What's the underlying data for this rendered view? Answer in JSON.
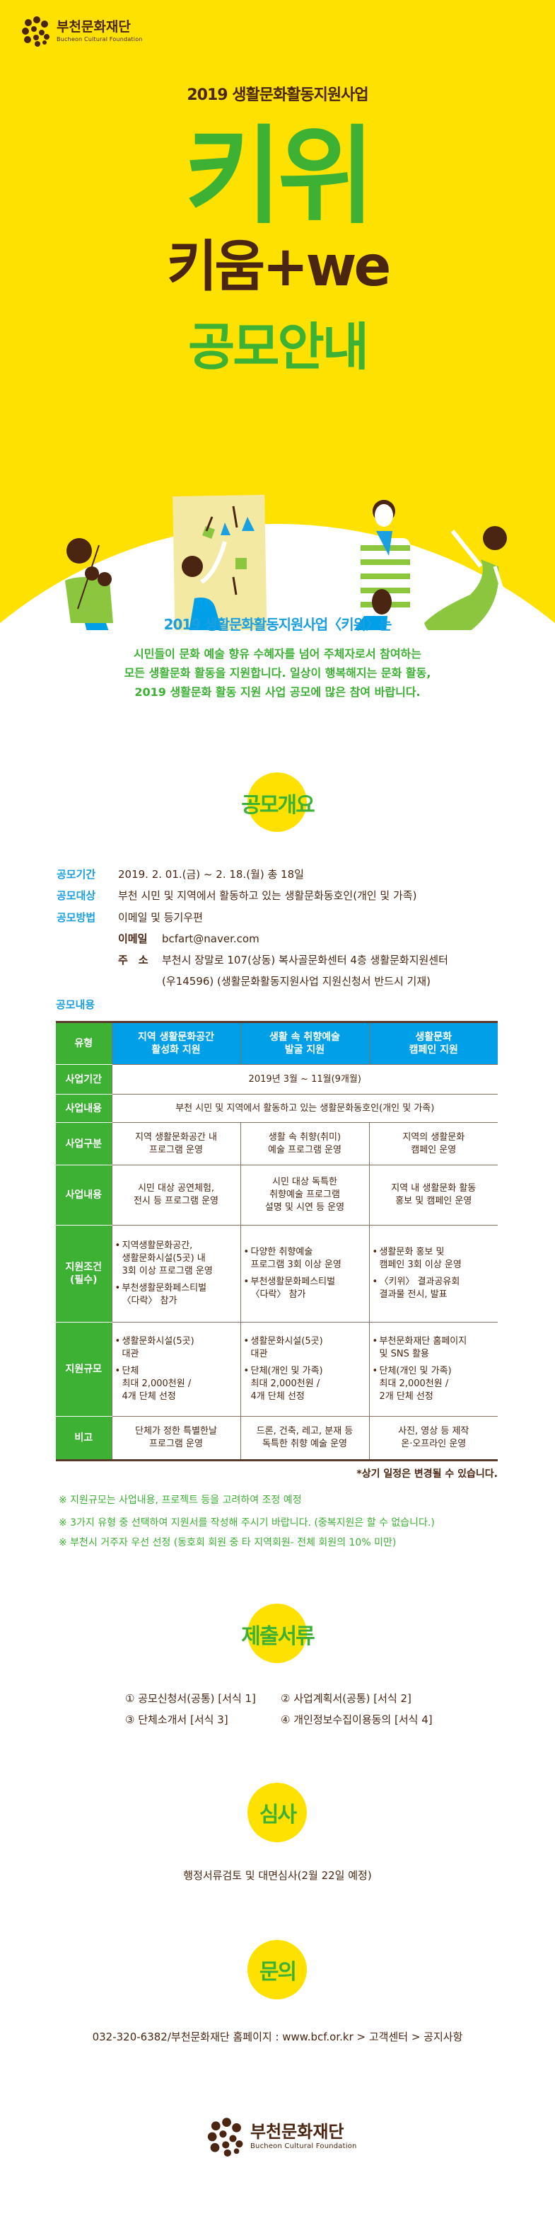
{
  "brand": {
    "name_ko": "부천문화재단",
    "name_en": "Bucheon Cultural Foundation"
  },
  "colors": {
    "yellow": "#ffe100",
    "green": "#3db134",
    "brown": "#4a2511",
    "blue": "#00a0e9"
  },
  "hero": {
    "subtitle": "2019 생활문화활동지원사업",
    "title": "키위",
    "title_expansion": "키움+we",
    "heading": "공모안내"
  },
  "intro": {
    "heading": "2019 생활문화활동지원사업〈키위〉는",
    "lines": [
      "시민들이 문화 예술 향유 수혜자를 넘어 주체자로서 참여하는",
      "모든 생활문화 활동을 지원합니다. 일상이 행복해지는 문화 활동,",
      "2019 생활문화 활동 지원 사업 공모에 많은 참여 바랍니다."
    ]
  },
  "overview": {
    "badge": "공모개요",
    "period_label": "공모기간",
    "period": "2019. 2. 01.(금) ~ 2. 18.(월) 총 18일",
    "target_label": "공모대상",
    "target": "부천 시민 및 지역에서 활동하고 있는 생활문화동호인(개인 및 가족)",
    "method_label": "공모방법",
    "method": "이메일 및 등기우편",
    "email_label": "이메일",
    "email": "bcfart@naver.com",
    "address_label": "주　소",
    "address": "부천시 장말로 107(상동) 복사골문화센터 4층 생활문화지원센터",
    "address_note": "(우14596) (생활문화활동지원사업 지원신청서 반드시 기재)",
    "content_label": "공모내용"
  },
  "table": {
    "header": {
      "label": "유형",
      "cols": [
        [
          "지역 생활문화공간",
          "활성화 지원"
        ],
        [
          "생활 속 취향예술",
          "발굴 지원"
        ],
        [
          "생활문화",
          "캠페인 지원"
        ]
      ]
    },
    "rows": [
      {
        "label": [
          "사업기간"
        ],
        "span": "2019년 3월 ~ 11월(9개월)"
      },
      {
        "label": [
          "사업내용"
        ],
        "span": "부천 시민 및 지역에서 활동하고 있는 생활문화동호인(개인 및 가족)"
      },
      {
        "label": [
          "사업구분"
        ],
        "cells": [
          {
            "lines": [
              "지역 생활문화공간 내",
              "프로그램 운영"
            ]
          },
          {
            "lines": [
              "생활 속 취향(취미)",
              "예술 프로그램 운영"
            ]
          },
          {
            "lines": [
              "지역의 생활문화",
              "캠페인 운영"
            ]
          }
        ]
      },
      {
        "label": [
          "사업내용"
        ],
        "cells": [
          {
            "lines": [
              "시민 대상 공연체험,",
              "전시 등 프로그램 운영"
            ]
          },
          {
            "lines": [
              "시민 대상 독특한",
              "취향예술 프로그램",
              "설명 및 시연 등 운영"
            ]
          },
          {
            "lines": [
              "지역 내 생활문화 활동",
              "홍보 및 캠페인 운영"
            ]
          }
        ]
      },
      {
        "label": [
          "지원조건",
          "(필수)"
        ],
        "cells": [
          {
            "bullets": [
              [
                "지역생활문화공간,",
                "생활문화시설(5곳) 내",
                "3회 이상 프로그램 운영"
              ],
              [
                "부천생활문화페스티벌",
                "〈다락〉 참가"
              ]
            ]
          },
          {
            "bullets": [
              [
                "다양한 취향예술",
                "프로그램 3회 이상 운영"
              ],
              [
                "부천생활문화페스티벌",
                "〈다락〉 참가"
              ]
            ]
          },
          {
            "bullets": [
              [
                "생활문화 홍보 및",
                "캠페인 3회 이상 운영"
              ],
              [
                "〈키위〉 결과공유회",
                "결과물 전시, 발표"
              ]
            ]
          }
        ]
      },
      {
        "label": [
          "지원규모"
        ],
        "cells": [
          {
            "bullets": [
              [
                "생활문화시설(5곳)",
                "대관"
              ],
              [
                "단체",
                "최대 2,000천원 /",
                "4개 단체 선정"
              ]
            ]
          },
          {
            "bullets": [
              [
                "생활문화시설(5곳)",
                "대관"
              ],
              [
                "단체(개인 및 가족)",
                "최대 2,000천원 /",
                "4개 단체 선정"
              ]
            ]
          },
          {
            "bullets": [
              [
                "부천문화재단 홈페이지",
                "및 SNS 활용"
              ],
              [
                "단체(개인 및 가족)",
                "최대 2,000천원 /",
                "2개 단체 선정"
              ]
            ]
          }
        ]
      },
      {
        "label": [
          "비고"
        ],
        "cells": [
          {
            "lines": [
              "단체가 정한 특별한날",
              "프로그램 운영"
            ]
          },
          {
            "lines": [
              "드론, 건축, 레고, 분재 등",
              "독특한 취향 예술 운영"
            ]
          },
          {
            "lines": [
              "사진, 영상 등 제작",
              "온·오프라인 운영"
            ]
          }
        ]
      }
    ],
    "footnote": "*상기 일정은 변경될 수 있습니다."
  },
  "notes": [
    "※  지원규모는 사업내용, 프로젝트 등을 고려하여 조정 예정",
    "※  3가지 유형 중 선택하여 지원서를 작성해 주시기 바랍니다. (중복지원은 할 수 없습니다.)",
    "※  부천시 거주자 우선 선정 (동호회 회원 중 타 지역회원- 전체 회원의 10% 미만)"
  ],
  "documents": {
    "badge": "제출서류",
    "items": [
      "① 공모신청서(공통) [서식 1]",
      "② 사업계획서(공통) [서식 2]",
      "③ 단체소개서 [서식 3]",
      "④ 개인정보수집이용동의 [서식 4]"
    ]
  },
  "review": {
    "badge": "심사",
    "text": "행정서류검토 및 대면심사(2월 22일 예정)"
  },
  "contact": {
    "badge": "문의",
    "text": "032-320-6382/부천문화재단 홈페이지 : www.bcf.or.kr > 고객센터 > 공지사항"
  }
}
